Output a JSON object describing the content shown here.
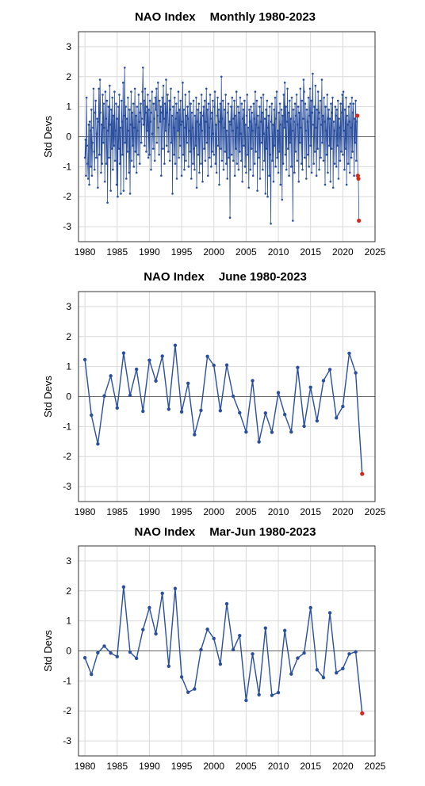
{
  "colors": {
    "line": "#2a4f9e",
    "point": "#2a4f9e",
    "highlight": "#d42a1e",
    "grid": "#d9d9d9",
    "zero": "#666666"
  },
  "chart_data": [
    {
      "type": "line",
      "title_left": "NAO Index",
      "title_right": "Monthly 1980-2023",
      "ylabel": "Std Devs",
      "xlim": [
        1979,
        2025
      ],
      "ylim": [
        -3.5,
        3.5
      ],
      "xticks": [
        "1980",
        "1985",
        "1990",
        "1995",
        "2000",
        "2005",
        "2010",
        "2015",
        "2020",
        "2025"
      ],
      "yticks": [
        "3",
        "2",
        "1",
        "0",
        "-1",
        "-2",
        "-3"
      ],
      "grid": true,
      "series": [
        {
          "x_start": 1980.0,
          "x_step_months": 1,
          "values": [
            -0.7,
            -0.1,
            -1.3,
            1.3,
            -0.3,
            -0.9,
            -1.4,
            0.4,
            -1.6,
            0.5,
            0.2,
            -1.0,
            0.9,
            -1.3,
            -0.2,
            0.3,
            1.6,
            -0.5,
            -1.1,
            0.8,
            1.2,
            -0.7,
            0.1,
            0.6,
            -1.7,
            0.5,
            1.6,
            -0.6,
            1.9,
            0.8,
            -1.2,
            0.4,
            -0.9,
            1.4,
            -0.2,
            1.1,
            0.3,
            -1.5,
            1.5,
            0.6,
            -0.9,
            1.2,
            -2.2,
            0.2,
            1.0,
            -0.7,
            1.7,
            0.4,
            -1.8,
            0.9,
            -0.4,
            1.3,
            -1.1,
            0.7,
            -0.3,
            1.5,
            -0.8,
            0.2,
            1.1,
            -1.6,
            0.6,
            -2.0,
            1.0,
            -0.4,
            1.4,
            -0.9,
            0.3,
            -1.9,
            1.2,
            0.5,
            -0.6,
            1.8,
            -1.8,
            0.7,
            2.3,
            -0.2,
            1.0,
            -1.4,
            0.6,
            -0.5,
            1.3,
            0.2,
            -1.2,
            0.9,
            -1.9,
            0.4,
            1.5,
            -0.8,
            0.8,
            -0.3,
            1.1,
            -1.0,
            0.3,
            1.6,
            -0.5,
            0.7,
            -1.2,
            1.0,
            0.2,
            -0.6,
            1.4,
            0.5,
            -0.9,
            0.8,
            1.1,
            -0.2,
            0.6,
            1.5,
            2.3,
            0.4,
            1.2,
            -0.3,
            1.6,
            0.8,
            -0.5,
            1.0,
            0.2,
            1.4,
            -0.7,
            0.9,
            -0.6,
            1.2,
            0.5,
            -1.1,
            0.8,
            1.5,
            0.1,
            -0.4,
            1.1,
            0.6,
            -0.8,
            1.3,
            0.9,
            1.6,
            -0.2,
            0.7,
            1.8,
            0.3,
            -0.6,
            1.2,
            0.5,
            1.0,
            -1.3,
            0.8,
            1.3,
            -0.4,
            1.7,
            0.6,
            -0.9,
            1.1,
            0.2,
            1.9,
            -0.3,
            0.8,
            1.4,
            -0.5,
            0.4,
            1.2,
            -0.8,
            0.9,
            1.6,
            -0.2,
            0.7,
            -1.9,
            1.0,
            0.3,
            -0.6,
            1.3,
            -0.9,
            0.6,
            1.1,
            -1.4,
            0.8,
            0.2,
            1.5,
            -0.7,
            0.9,
            -0.3,
            1.2,
            0.4,
            -1.3,
            0.5,
            1.8,
            -0.6,
            0.9,
            -1.1,
            0.3,
            1.4,
            -0.8,
            0.7,
            -0.2,
            1.0,
            0.6,
            -1.0,
            1.5,
            0.2,
            -0.5,
            1.1,
            -1.4,
            0.8,
            0.3,
            -0.9,
            1.2,
            -0.4,
            -1.1,
            0.7,
            -0.3,
            1.3,
            -1.7,
            0.5,
            0.9,
            -0.6,
            1.1,
            -1.2,
            0.4,
            0.8,
            -0.9,
            1.4,
            0.2,
            -1.5,
            0.7,
            1.0,
            -0.4,
            1.2,
            -0.8,
            0.5,
            1.6,
            -0.2,
            0.9,
            -1.3,
            1.1,
            0.3,
            -0.7,
            1.4,
            0.6,
            -1.0,
            0.8,
            -0.5,
            1.2,
            0.1,
            -0.6,
            1.0,
            1.5,
            -0.9,
            0.4,
            -1.2,
            0.7,
            1.3,
            -0.3,
            0.9,
            -1.6,
            0.5,
            1.1,
            -0.4,
            2.0,
            -0.8,
            0.6,
            1.2,
            -1.1,
            0.3,
            0.9,
            -0.5,
            1.4,
            -0.9,
            0.2,
            -1.4,
            0.8,
            1.1,
            -0.7,
            0.5,
            -2.7,
            0.4,
            1.0,
            -0.6,
            1.3,
            0.2,
            -0.8,
            0.6,
            1.2,
            -1.3,
            0.7,
            -0.4,
            1.5,
            -0.9,
            0.3,
            1.0,
            -1.1,
            0.8,
            -0.5,
            1.3,
            0.1,
            -0.8,
            1.1,
            -1.5,
            0.6,
            0.9,
            -0.3,
            1.2,
            -1.0,
            0.4,
            -1.2,
            0.7,
            1.4,
            -0.6,
            0.3,
            -1.7,
            0.9,
            0.5,
            -1.1,
            1.0,
            -0.4,
            0.8,
            0.2,
            -1.3,
            1.1,
            0.6,
            -0.9,
            1.5,
            -0.5,
            0.4,
            1.2,
            -1.8,
            0.7,
            0.3,
            -0.7,
            1.0,
            -1.4,
            0.5,
            1.3,
            -0.2,
            0.8,
            -1.1,
            1.4,
            0.1,
            -0.8,
            0.6,
            -1.9,
            0.9,
            -0.4,
            1.2,
            -2.0,
            0.3,
            0.7,
            -1.3,
            1.0,
            -0.6,
            -2.9,
            0.5,
            1.1,
            -0.8,
            0.4,
            -1.5,
            0.9,
            -0.3,
            1.3,
            -1.0,
            0.6,
            1.5,
            -0.7,
            0.2,
            -1.2,
            0.8,
            -0.5,
            1.1,
            -1.6,
            0.4,
            0.9,
            -2.1,
            0.7,
            -0.9,
            1.4,
            0.3,
            1.8,
            -0.6,
            1.0,
            -1.1,
            0.5,
            1.6,
            -0.4,
            0.8,
            -1.3,
            1.2,
            -0.2,
            0.6,
            -1.0,
            1.3,
            0.2,
            -2.8,
            0.9,
            0.5,
            -1.2,
            1.1,
            -0.5,
            0.7,
            1.4,
            -0.8,
            0.4,
            1.0,
            -1.5,
            0.8,
            -0.2,
            1.6,
            0.3,
            -0.9,
            1.2,
            -1.1,
            0.6,
            1.9,
            1.5,
            -0.7,
            1.1,
            0.2,
            -1.4,
            0.9,
            0.5,
            -0.6,
            1.3,
            -1.0,
            0.7,
            1.6,
            -0.3,
            1.2,
            -1.2,
            0.8,
            2.1,
            0.4,
            -0.9,
            1.0,
            -0.5,
            1.7,
            0.3,
            -1.3,
            0.9,
            -0.4,
            1.5,
            0.6,
            -1.1,
            0.8,
            1.2,
            -0.7,
            0.4,
            1.9,
            -0.2,
            0.7,
            -0.8,
            1.3,
            0.5,
            -1.6,
            1.0,
            0.2,
            -0.6,
            1.4,
            -1.2,
            0.6,
            0.9,
            -0.3,
            0.6,
            -1.5,
            1.1,
            -0.4,
            0.8,
            1.3,
            -1.7,
            0.5,
            0.2,
            -0.9,
            1.0,
            0.7,
            -1.0,
            0.9,
            -0.3,
            1.2,
            -1.4,
            0.6,
            0.3,
            -0.8,
            1.1,
            -0.5,
            0.8,
            1.4,
            -0.6,
            1.5,
            0.2,
            -1.1,
            0.9,
            -0.4,
            1.3,
            -1.6,
            0.7,
            0.4,
            -0.9,
            1.0,
            0.5,
            -1.2,
            1.1,
            0.3,
            -0.7,
            1.3,
            -0.5,
            0.8,
            1.1,
            -1.3,
            0.6,
            -0.2,
            1.2,
            -0.8,
            0.5,
            0.7,
            -1.3,
            -1.4,
            -2.8
          ],
          "highlight_last": 4
        }
      ]
    },
    {
      "type": "line",
      "title_left": "NAO Index",
      "title_right": "June 1980-2023",
      "ylabel": "Std Devs",
      "xlim": [
        1979,
        2025
      ],
      "ylim": [
        -3.5,
        3.5
      ],
      "xticks": [
        "1980",
        "1985",
        "1990",
        "1995",
        "2000",
        "2005",
        "2010",
        "2015",
        "2020",
        "2025"
      ],
      "yticks": [
        "3",
        "2",
        "1",
        "0",
        "-1",
        "-2",
        "-3"
      ],
      "grid": true,
      "series": [
        {
          "x": [
            1980,
            1981,
            1982,
            1983,
            1984,
            1985,
            1986,
            1987,
            1988,
            1989,
            1990,
            1991,
            1992,
            1993,
            1994,
            1995,
            1996,
            1997,
            1998,
            1999,
            2000,
            2001,
            2002,
            2003,
            2004,
            2005,
            2006,
            2007,
            2008,
            2009,
            2010,
            2011,
            2012,
            2013,
            2014,
            2015,
            2016,
            2017,
            2018,
            2019,
            2020,
            2021,
            2022,
            2023
          ],
          "values": [
            1.23,
            -0.62,
            -1.58,
            0.02,
            0.69,
            -0.38,
            1.45,
            0.04,
            0.91,
            -0.49,
            1.21,
            0.52,
            1.35,
            -0.42,
            1.71,
            -0.51,
            0.44,
            -1.27,
            -0.46,
            1.34,
            1.04,
            -0.47,
            1.05,
            0.01,
            -0.54,
            -1.18,
            0.53,
            -1.51,
            -0.55,
            -1.19,
            0.13,
            -0.6,
            -1.18,
            0.97,
            -0.99,
            0.31,
            -0.81,
            0.53,
            0.9,
            -0.71,
            -0.33,
            1.44,
            0.79,
            -2.58
          ],
          "highlight_last": 1
        }
      ]
    },
    {
      "type": "line",
      "title_left": "NAO Index",
      "title_right": "Mar-Jun 1980-2023",
      "ylabel": "Std Devs",
      "xlim": [
        1979,
        2025
      ],
      "ylim": [
        -3.5,
        3.5
      ],
      "xticks": [
        "1980",
        "1985",
        "1990",
        "1995",
        "2000",
        "2005",
        "2010",
        "2015",
        "2020",
        "2025"
      ],
      "yticks": [
        "3",
        "2",
        "1",
        "0",
        "-1",
        "-2",
        "-3"
      ],
      "grid": true,
      "series": [
        {
          "x": [
            1980,
            1981,
            1982,
            1983,
            1984,
            1985,
            1986,
            1987,
            1988,
            1989,
            1990,
            1991,
            1992,
            1993,
            1994,
            1995,
            1996,
            1997,
            1998,
            1999,
            2000,
            2001,
            2002,
            2003,
            2004,
            2005,
            2006,
            2007,
            2008,
            2009,
            2010,
            2011,
            2012,
            2013,
            2014,
            2015,
            2016,
            2017,
            2018,
            2019,
            2020,
            2021,
            2022,
            2023
          ],
          "values": [
            -0.23,
            -0.78,
            -0.06,
            0.16,
            -0.07,
            -0.19,
            2.13,
            -0.04,
            -0.25,
            0.71,
            1.44,
            0.57,
            1.92,
            -0.51,
            2.08,
            -0.87,
            -1.38,
            -1.27,
            0.04,
            0.72,
            0.41,
            -0.44,
            1.57,
            0.04,
            0.51,
            -1.65,
            -0.1,
            -1.46,
            0.76,
            -1.48,
            -1.39,
            0.68,
            -0.77,
            -0.24,
            -0.07,
            1.44,
            -0.63,
            -0.89,
            1.27,
            -0.73,
            -0.59,
            -0.1,
            -0.03,
            -2.08
          ],
          "highlight_last": 1
        }
      ]
    }
  ]
}
